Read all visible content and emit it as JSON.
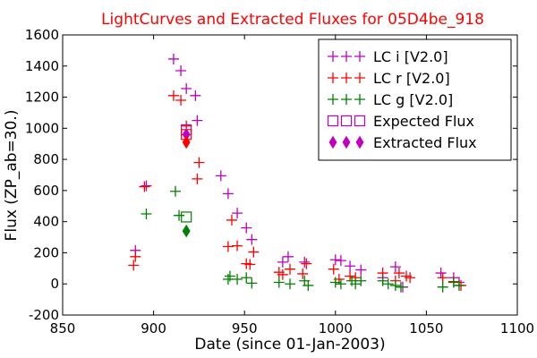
{
  "chart_data": {
    "type": "scatter",
    "title": "LightCurves and Extracted Fluxes for 05D4be_918",
    "title_color": "#ff0000",
    "xlabel": "Date (since 01-Jan-2003)",
    "ylabel": "Flux (ZP_ab=30.)",
    "xlim": [
      850,
      1100
    ],
    "ylim": [
      -200,
      1600
    ],
    "xticks": [
      850,
      900,
      950,
      1000,
      1050,
      1100
    ],
    "yticks": [
      -200,
      0,
      200,
      400,
      600,
      800,
      1000,
      1200,
      1400,
      1600
    ],
    "grid": false,
    "legend_position": "top-right",
    "series": [
      {
        "name": "LC i [V2.0]",
        "marker": "plus",
        "color": "#bf00bf",
        "points": [
          [
            890,
            215
          ],
          [
            896,
            630
          ],
          [
            911,
            1445
          ],
          [
            915,
            1370
          ],
          [
            918,
            1255
          ],
          [
            923,
            1210
          ],
          [
            924,
            1050
          ],
          [
            937,
            695
          ],
          [
            941,
            580
          ],
          [
            946,
            455
          ],
          [
            951,
            360
          ],
          [
            954,
            285
          ],
          [
            971,
            140
          ],
          [
            974,
            175
          ],
          [
            983,
            140
          ],
          [
            1000,
            155
          ],
          [
            1003,
            150
          ],
          [
            1008,
            115
          ],
          [
            1014,
            90
          ],
          [
            1026,
            40
          ],
          [
            1033,
            110
          ],
          [
            1037,
            -20
          ],
          [
            1058,
            70
          ],
          [
            1065,
            40
          ],
          [
            1068,
            10
          ]
        ]
      },
      {
        "name": "LC r [V2.0]",
        "marker": "plus",
        "color": "#ff0000",
        "points": [
          [
            889,
            120
          ],
          [
            890,
            175
          ],
          [
            895,
            625
          ],
          [
            911,
            1210
          ],
          [
            915,
            1180
          ],
          [
            918,
            1015
          ],
          [
            924,
            675
          ],
          [
            925,
            780
          ],
          [
            941,
            240
          ],
          [
            943,
            410
          ],
          [
            946,
            245
          ],
          [
            951,
            130
          ],
          [
            953,
            125
          ],
          [
            955,
            205
          ],
          [
            969,
            75
          ],
          [
            971,
            60
          ],
          [
            975,
            95
          ],
          [
            982,
            65
          ],
          [
            984,
            130
          ],
          [
            999,
            95
          ],
          [
            1002,
            30
          ],
          [
            1008,
            50
          ],
          [
            1011,
            40
          ],
          [
            1026,
            70
          ],
          [
            1033,
            20
          ],
          [
            1035,
            70
          ],
          [
            1039,
            50
          ],
          [
            1041,
            40
          ],
          [
            1059,
            40
          ],
          [
            1065,
            15
          ],
          [
            1069,
            -10
          ]
        ]
      },
      {
        "name": "LC g [V2.0]",
        "marker": "plus",
        "color": "#008000",
        "points": [
          [
            896,
            450
          ],
          [
            912,
            595
          ],
          [
            914,
            440
          ],
          [
            941,
            30
          ],
          [
            942,
            50
          ],
          [
            946,
            30
          ],
          [
            951,
            40
          ],
          [
            954,
            5
          ],
          [
            969,
            10
          ],
          [
            975,
            0
          ],
          [
            983,
            20
          ],
          [
            985,
            -10
          ],
          [
            1000,
            10
          ],
          [
            1003,
            0
          ],
          [
            1009,
            20
          ],
          [
            1011,
            0
          ],
          [
            1014,
            20
          ],
          [
            1026,
            20
          ],
          [
            1029,
            0
          ],
          [
            1033,
            -10
          ],
          [
            1036,
            -20
          ],
          [
            1059,
            -20
          ],
          [
            1065,
            10
          ],
          [
            1068,
            -10
          ]
        ]
      },
      {
        "name": "Expected Flux",
        "marker": "square",
        "color": "#bf00bf",
        "points": [
          [
            918,
            990
          ]
        ]
      },
      {
        "name": "Expected Flux",
        "marker": "square",
        "color": "#ff0000",
        "points": [
          [
            918,
            960
          ]
        ]
      },
      {
        "name": "Expected Flux",
        "marker": "square",
        "color": "#008000",
        "points": [
          [
            918,
            430
          ]
        ]
      },
      {
        "name": "Extracted Flux",
        "marker": "diamond",
        "color": "#bf00bf",
        "points": [
          [
            918,
            960
          ]
        ]
      },
      {
        "name": "Extracted Flux",
        "marker": "diamond",
        "color": "#ff0000",
        "points": [
          [
            918,
            910
          ]
        ]
      },
      {
        "name": "Extracted Flux",
        "marker": "diamond",
        "color": "#008000",
        "points": [
          [
            918,
            340
          ]
        ]
      }
    ],
    "legend": [
      {
        "label": "LC i [V2.0]",
        "marker": "plus",
        "color": "#bf00bf"
      },
      {
        "label": "LC r [V2.0]",
        "marker": "plus",
        "color": "#ff0000"
      },
      {
        "label": "LC g [V2.0]",
        "marker": "plus",
        "color": "#008000"
      },
      {
        "label": "Expected Flux",
        "marker": "square",
        "color": "#bf00bf"
      },
      {
        "label": "Extracted Flux",
        "marker": "diamond",
        "color": "#bf00bf"
      }
    ]
  }
}
